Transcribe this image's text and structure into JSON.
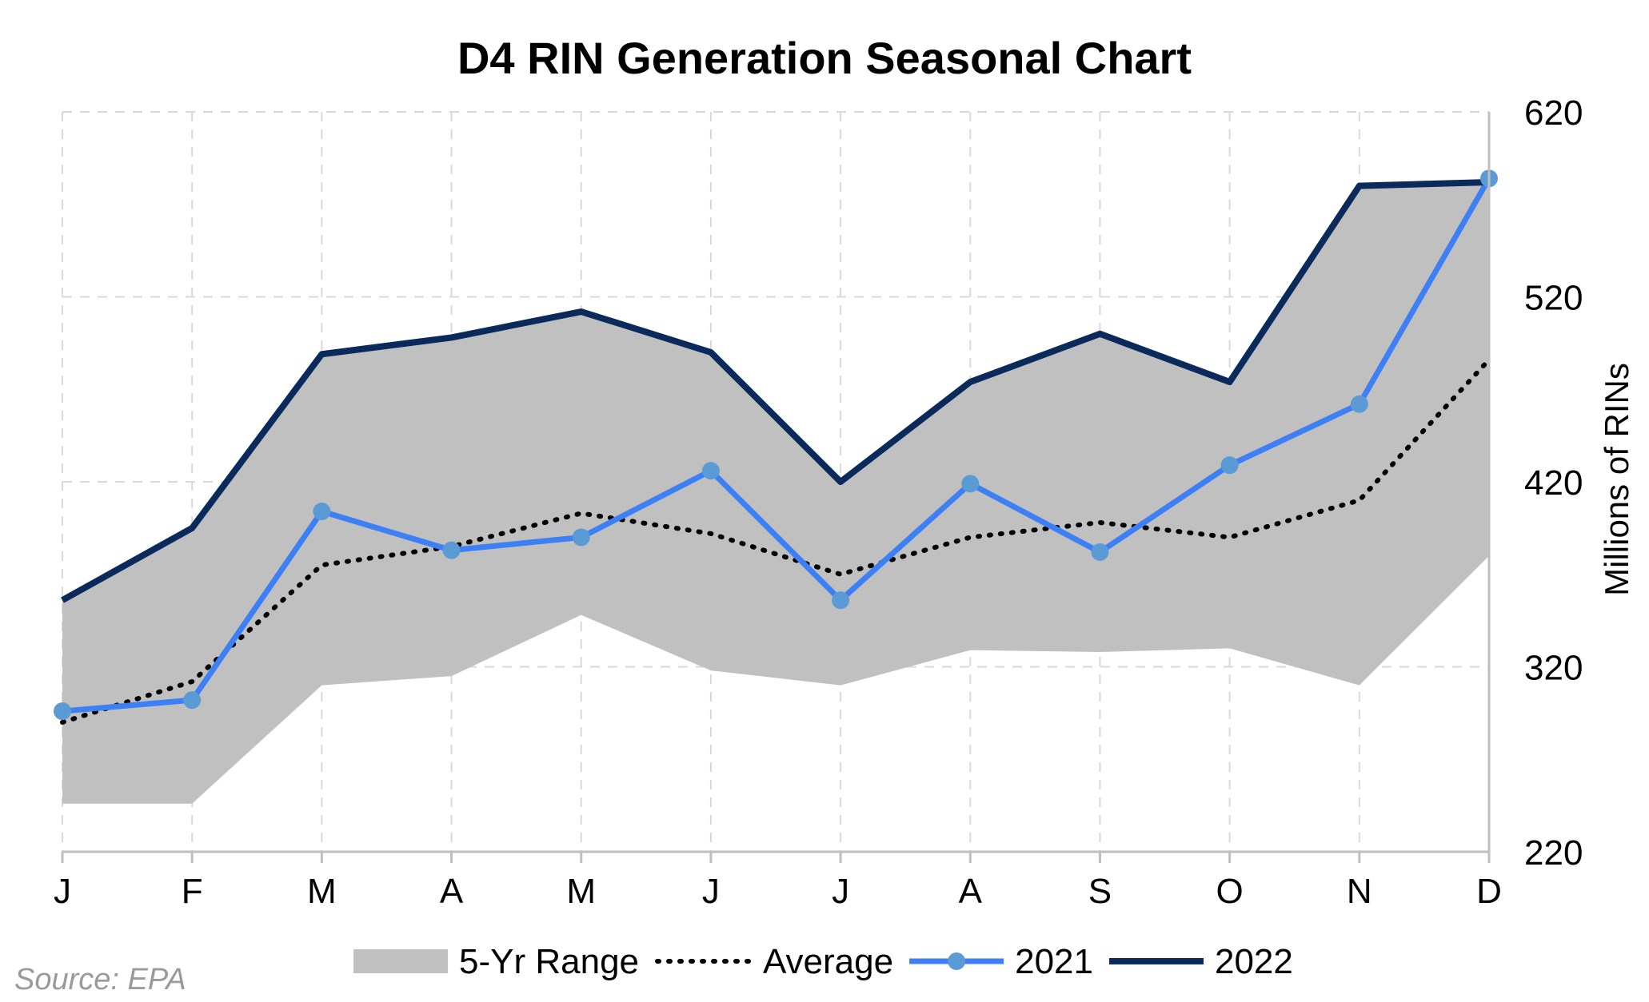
{
  "chart_data": {
    "type": "line",
    "title": "D4 RIN Generation Seasonal Chart",
    "ylabel": "Millions of RINs",
    "xlabel": "",
    "categories": [
      "J",
      "F",
      "M",
      "A",
      "M",
      "J",
      "J",
      "A",
      "S",
      "O",
      "N",
      "D"
    ],
    "y_axis_side": "right",
    "ylim": [
      220,
      620
    ],
    "yticks": [
      220,
      320,
      420,
      520,
      620
    ],
    "grid": true,
    "legend_position": "bottom",
    "range": {
      "name": "5-Yr Range",
      "color": "#c0c0c0",
      "low": [
        246,
        246,
        310,
        315,
        348,
        318,
        310,
        329,
        328,
        330,
        310,
        380
      ],
      "high": [
        356,
        395,
        489,
        498,
        512,
        490,
        420,
        474,
        500,
        474,
        580,
        582
      ]
    },
    "series": [
      {
        "name": "Average",
        "color": "#000000",
        "style": "dotted",
        "values": [
          290,
          312,
          375,
          385,
          403,
          392,
          370,
          390,
          398,
          390,
          410,
          486
        ]
      },
      {
        "name": "2021",
        "color": "#3d7ff5",
        "marker_color": "#5b9bd5",
        "style": "solid-markers",
        "values": [
          296,
          302,
          404,
          383,
          390,
          426,
          356,
          419,
          382,
          429,
          462,
          584
        ]
      },
      {
        "name": "2022",
        "color": "#0a2a5c",
        "style": "solid",
        "values": [
          356,
          395,
          489,
          498,
          512,
          490,
          420,
          474,
          500,
          474,
          580,
          582
        ]
      }
    ]
  },
  "source": "Source: EPA"
}
